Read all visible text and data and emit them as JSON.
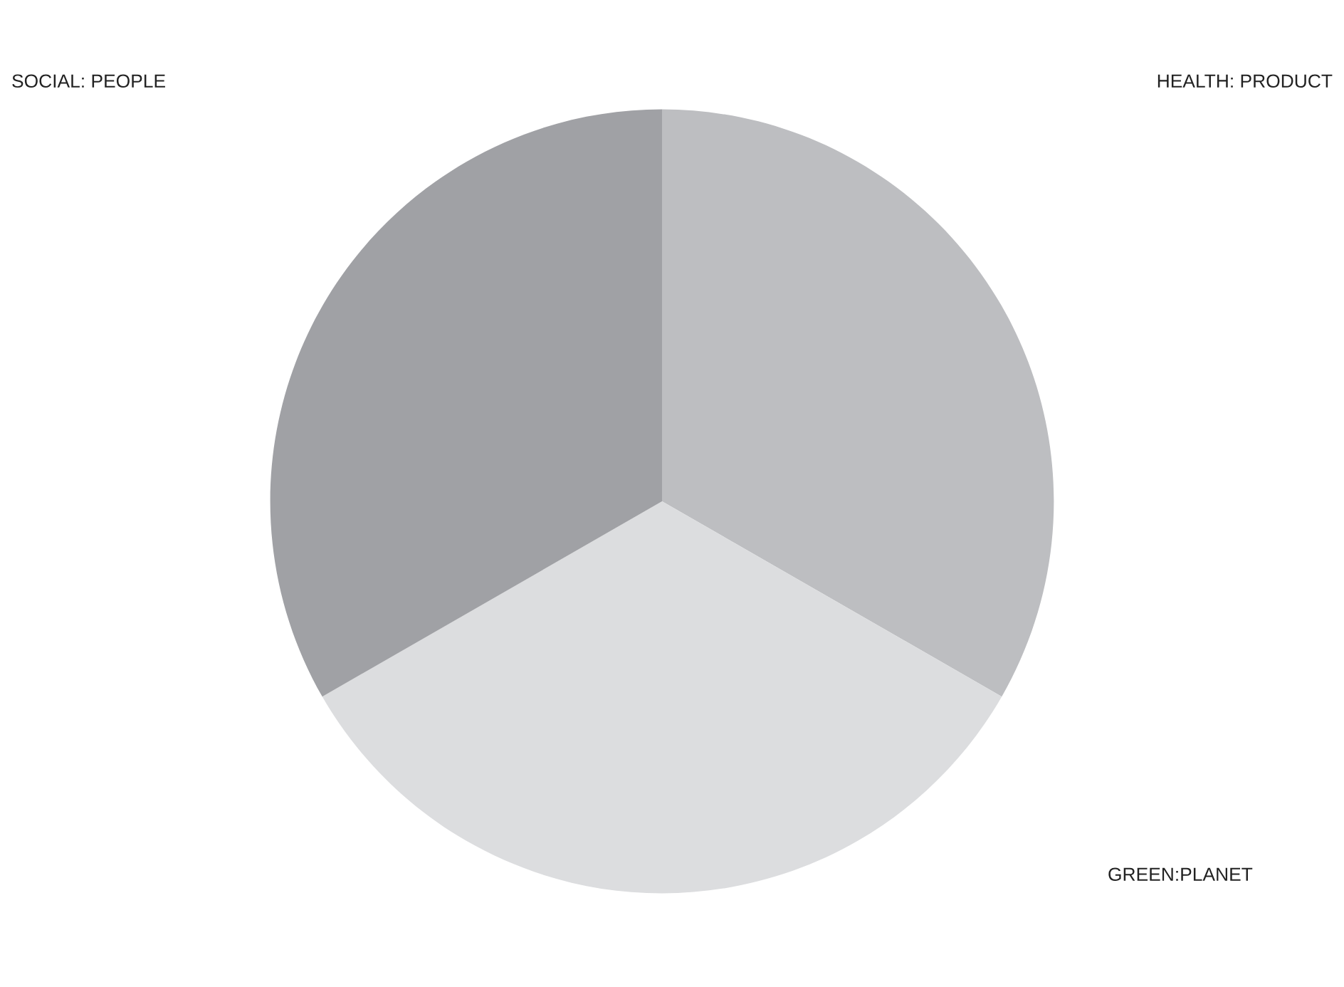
{
  "chart_data": {
    "type": "pie",
    "categories": [
      "HEALTH: PRODUCT",
      "GREEN:PLANET",
      "SOCIAL: PEOPLE"
    ],
    "values": [
      33.3,
      33.4,
      33.3
    ],
    "colors": [
      "#bdbec1",
      "#dcdddf",
      "#a0a1a5"
    ]
  }
}
